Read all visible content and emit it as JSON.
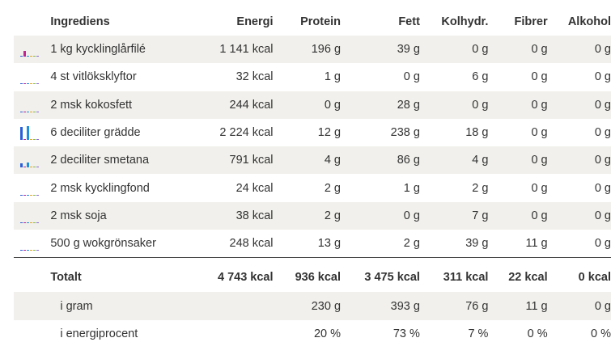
{
  "colors": {
    "energy": "#2b5fd9",
    "protein": "#c0268f",
    "fat": "#1c8fe0",
    "carb": "#e6a823",
    "fiber": "#7ec142",
    "alcohol": "#8b6bd8"
  },
  "header": {
    "ingredients": "Ingrediens",
    "energy": "Energi",
    "protein": "Protein",
    "fat": "Fett",
    "carb": "Kolhydr.",
    "fiber": "Fibrer",
    "alcohol": "Alkohol"
  },
  "rows": [
    {
      "name": "1 kg kycklinglårfilé",
      "energy": "1 141 kcal",
      "protein": "196 g",
      "fat": "39 g",
      "carb": "0 g",
      "fiber": "0 g",
      "alcohol": "0 g",
      "bar": {
        "energy": 0.05,
        "protein": 0.4,
        "fat": 0.08,
        "carb": 0,
        "fiber": 0,
        "alcohol": 0
      }
    },
    {
      "name": "4 st vitlöksklyftor",
      "energy": "32 kcal",
      "protein": "1 g",
      "fat": "0 g",
      "carb": "6 g",
      "fiber": "0 g",
      "alcohol": "0 g",
      "bar": {
        "energy": 0,
        "protein": 0,
        "fat": 0,
        "carb": 0,
        "fiber": 0,
        "alcohol": 0
      }
    },
    {
      "name": "2 msk kokosfett",
      "energy": "244 kcal",
      "protein": "0 g",
      "fat": "28 g",
      "carb": "0 g",
      "fiber": "0 g",
      "alcohol": "0 g",
      "bar": {
        "energy": 0.05,
        "protein": 0,
        "fat": 0.06,
        "carb": 0,
        "fiber": 0,
        "alcohol": 0
      }
    },
    {
      "name": "6 deciliter grädde",
      "energy": "2 224 kcal",
      "protein": "12 g",
      "fat": "238 g",
      "carb": "18 g",
      "fiber": "0 g",
      "alcohol": "0 g",
      "bar": {
        "energy": 0.95,
        "protein": 0,
        "fat": 1.0,
        "carb": 0.05,
        "fiber": 0,
        "alcohol": 0
      }
    },
    {
      "name": "2 deciliter smetana",
      "energy": "791 kcal",
      "protein": "4 g",
      "fat": "86 g",
      "carb": "4 g",
      "fiber": "0 g",
      "alcohol": "0 g",
      "bar": {
        "energy": 0.3,
        "protein": 0,
        "fat": 0.36,
        "carb": 0,
        "fiber": 0,
        "alcohol": 0
      }
    },
    {
      "name": "2 msk kycklingfond",
      "energy": "24 kcal",
      "protein": "2 g",
      "fat": "1 g",
      "carb": "2 g",
      "fiber": "0 g",
      "alcohol": "0 g",
      "bar": {
        "energy": 0,
        "protein": 0,
        "fat": 0,
        "carb": 0,
        "fiber": 0,
        "alcohol": 0
      }
    },
    {
      "name": "2 msk soja",
      "energy": "38 kcal",
      "protein": "2 g",
      "fat": "0 g",
      "carb": "7 g",
      "fiber": "0 g",
      "alcohol": "0 g",
      "bar": {
        "energy": 0,
        "protein": 0,
        "fat": 0,
        "carb": 0,
        "fiber": 0,
        "alcohol": 0
      }
    },
    {
      "name": "500 g wokgrönsaker",
      "energy": "248 kcal",
      "protein": "13 g",
      "fat": "2 g",
      "carb": "39 g",
      "fiber": "11 g",
      "alcohol": "0 g",
      "bar": {
        "energy": 0.05,
        "protein": 0,
        "fat": 0,
        "carb": 0.05,
        "fiber": 0,
        "alcohol": 0
      }
    }
  ],
  "totals": {
    "label": "Totalt",
    "energy": "4 743 kcal",
    "protein": "936 kcal",
    "fat": "3 475 kcal",
    "carb": "311 kcal",
    "fiber": "22 kcal",
    "alcohol": "0 kcal"
  },
  "grams": {
    "label": "i gram",
    "protein": "230 g",
    "fat": "393 g",
    "carb": "76 g",
    "fiber": "11 g",
    "alcohol": "0 g"
  },
  "percent": {
    "label": "i energiprocent",
    "protein": "20 %",
    "fat": "73 %",
    "carb": "7 %",
    "fiber": "0 %",
    "alcohol": "0 %"
  }
}
